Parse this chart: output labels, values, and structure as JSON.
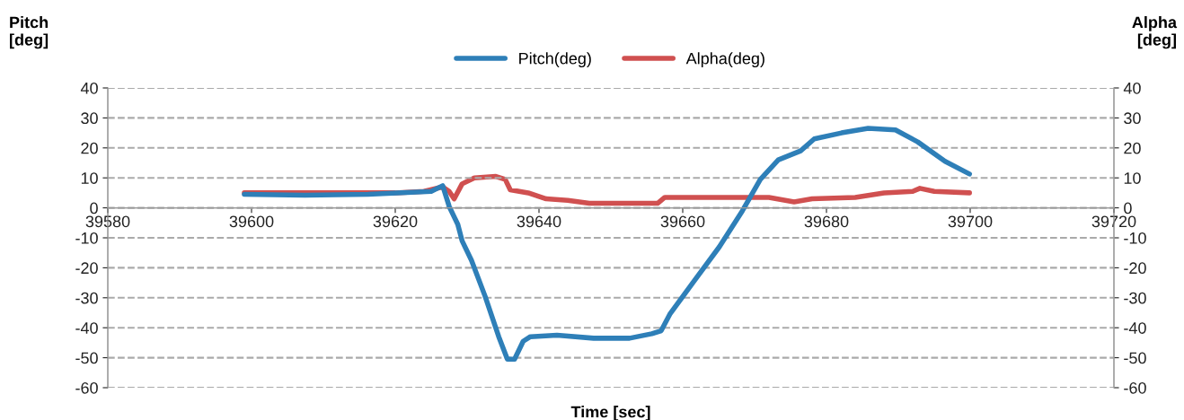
{
  "chart_data": {
    "type": "line",
    "xlabel": "Time [sec]",
    "ylabel": "Pitch\n[deg]",
    "y2label": "Alpha\n[deg]",
    "xlim": [
      39580,
      39720
    ],
    "xticks": [
      39580,
      39600,
      39620,
      39640,
      39660,
      39680,
      39700,
      39720
    ],
    "ylim": [
      -60,
      40
    ],
    "yticks": [
      -60,
      -50,
      -40,
      -30,
      -20,
      -10,
      0,
      10,
      20,
      30,
      40
    ],
    "y2lim": [
      -60,
      40
    ],
    "y2ticks": [
      -60,
      -50,
      -40,
      -30,
      -20,
      -10,
      0,
      10,
      20,
      30,
      40
    ],
    "grid": "y",
    "legend": "top",
    "marker": "none",
    "line_style": "solid",
    "series": [
      {
        "name": "Pitch(deg)",
        "color": "#2e7fb8",
        "x": [
          39599,
          39607.4,
          39616.2,
          39625,
          39626.6,
          39627.5,
          39628.7,
          39629.3,
          39630.6,
          39632.5,
          39634.4,
          39635.6,
          39636.6,
          39637.8,
          39638.8,
          39642.5,
          39647.6,
          39652.6,
          39655.7,
          39657,
          39658.2,
          39661.4,
          39665.1,
          39668.3,
          39670.8,
          39673.3,
          39676.4,
          39678.3,
          39682.1,
          39685.8,
          39689.6,
          39692.7,
          39696.5,
          39699.9
        ],
        "values": [
          4.5,
          4.2,
          4.5,
          5.5,
          7.4,
          0.5,
          -5.5,
          -11,
          -17.5,
          -29.5,
          -43,
          -50.5,
          -50.5,
          -44.5,
          -43,
          -42.5,
          -43.5,
          -43.5,
          -42,
          -41,
          -35.5,
          -25,
          -13,
          -1,
          9.5,
          16,
          19,
          23,
          25,
          26.5,
          26,
          22,
          15.5,
          11.3
        ]
      },
      {
        "name": "Alpha(deg)",
        "color": "#d05050",
        "axis": "y2",
        "x": [
          39599,
          39610,
          39620,
          39624,
          39626.6,
          39627.5,
          39628.2,
          39629.3,
          39631,
          39634,
          39635.3,
          39636,
          39638.5,
          39641,
          39644,
          39647,
          39652,
          39656.5,
          39657.5,
          39664,
          39672,
          39675.5,
          39678,
          39684,
          39688,
          39692,
          39693,
          39695,
          39699.9
        ],
        "values": [
          5,
          5,
          5,
          5.5,
          7,
          5.5,
          3,
          8,
          10,
          10.5,
          9.5,
          6,
          5,
          3,
          2.5,
          1.5,
          1.5,
          1.5,
          3.5,
          3.5,
          3.5,
          2,
          3,
          3.5,
          5,
          5.5,
          6.5,
          5.5,
          5
        ]
      }
    ]
  }
}
